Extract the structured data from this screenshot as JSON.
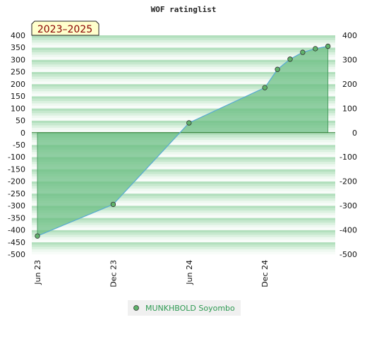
{
  "chart_data": {
    "type": "line",
    "title": "WOF ratinglist",
    "period_label": "2023–2025",
    "xlabel": "",
    "ylabel": "",
    "ylim": [
      -500,
      400
    ],
    "yticks": [
      -500,
      -450,
      -400,
      -350,
      -300,
      -250,
      -200,
      -150,
      -100,
      -50,
      0,
      50,
      100,
      150,
      200,
      250,
      300,
      350,
      400
    ],
    "yticks_right": [
      -500,
      -400,
      -300,
      -200,
      -100,
      0,
      100,
      200,
      300,
      400
    ],
    "xlim": [
      "2023-06",
      "2025-06"
    ],
    "xticks": [
      {
        "date": "2023-06",
        "label": "Jun 23"
      },
      {
        "date": "2023-12",
        "label": "Dec 23"
      },
      {
        "date": "2024-06",
        "label": "Jun 24"
      },
      {
        "date": "2024-12",
        "label": "Dec 24"
      }
    ],
    "grid": true,
    "legend_position": "bottom-center",
    "series": [
      {
        "name": "MUNKHBOLD Soyombo",
        "color": "#5aacd6",
        "fill": "#6cbf84",
        "marker_color": "#5fb36b",
        "points": [
          {
            "x": "2023-06",
            "y": -425
          },
          {
            "x": "2023-12",
            "y": -295
          },
          {
            "x": "2024-06",
            "y": 40
          },
          {
            "x": "2024-12",
            "y": 185
          },
          {
            "x": "2025-01",
            "y": 260
          },
          {
            "x": "2025-02",
            "y": 302
          },
          {
            "x": "2025-03",
            "y": 330
          },
          {
            "x": "2025-04",
            "y": 345
          },
          {
            "x": "2025-05",
            "y": 355
          }
        ]
      }
    ]
  }
}
